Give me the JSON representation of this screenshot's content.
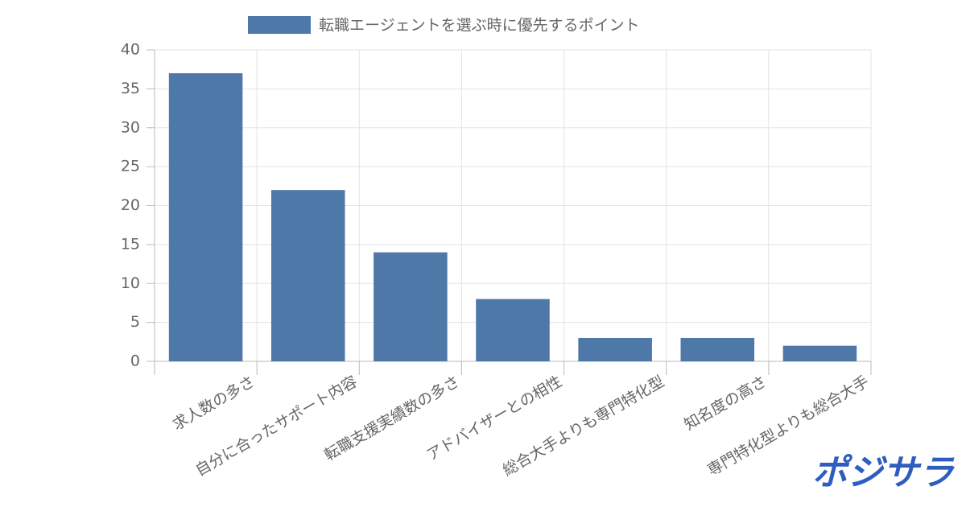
{
  "chart_data": {
    "type": "bar",
    "categories": [
      "求人数の多さ",
      "自分に合ったサポート内容",
      "転職支援実績数の多さ",
      "アドバイザーとの相性",
      "総合大手よりも専門特化型",
      "知名度の高さ",
      "専門特化型よりも総合大手"
    ],
    "series": [
      {
        "name": "転職エージェントを選ぶ時に優先するポイント",
        "color": "#4e78a8",
        "values": [
          37,
          22,
          14,
          8,
          3,
          3,
          2
        ]
      }
    ],
    "ylim": [
      0,
      40
    ],
    "yticks": [
      0,
      5,
      10,
      15,
      20,
      25,
      30,
      35,
      40
    ],
    "grid": true,
    "legend": "top"
  },
  "logo": "ポジサラ"
}
